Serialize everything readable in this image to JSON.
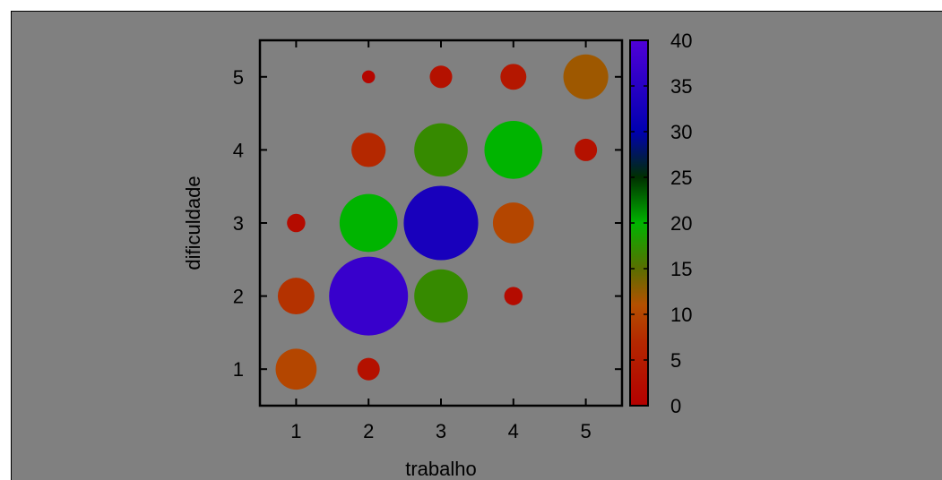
{
  "chart_data": {
    "type": "scatter",
    "subtype": "bubble",
    "title": "",
    "xlabel": "trabalho",
    "ylabel": "dificuldade",
    "xlim": [
      0.5,
      5.5
    ],
    "ylim": [
      0.5,
      5.5
    ],
    "xticks": [
      "1",
      "2",
      "3",
      "4",
      "5"
    ],
    "yticks": [
      "1",
      "2",
      "3",
      "4",
      "5"
    ],
    "grid": false,
    "colorbar": {
      "range": [
        0,
        40
      ],
      "ticks": [
        "0",
        "5",
        "10",
        "15",
        "20",
        "25",
        "30",
        "35",
        "40"
      ],
      "colormap": [
        {
          "v": 0,
          "color": "#b40000"
        },
        {
          "v": 7,
          "color": "#b42800"
        },
        {
          "v": 11,
          "color": "#b45000"
        },
        {
          "v": 15,
          "color": "#5a6e00"
        },
        {
          "v": 20,
          "color": "#00b400"
        },
        {
          "v": 25,
          "color": "#003000"
        },
        {
          "v": 30,
          "color": "#0000b0"
        },
        {
          "v": 40,
          "color": "#5000d8"
        }
      ]
    },
    "points": [
      {
        "x": 1,
        "y": 1,
        "value": 10
      },
      {
        "x": 1,
        "y": 2,
        "value": 8
      },
      {
        "x": 1,
        "y": 3,
        "value": 2
      },
      {
        "x": 2,
        "y": 1,
        "value": 3
      },
      {
        "x": 2,
        "y": 2,
        "value": 37
      },
      {
        "x": 2,
        "y": 3,
        "value": 20
      },
      {
        "x": 2,
        "y": 4,
        "value": 7
      },
      {
        "x": 2,
        "y": 5,
        "value": 1
      },
      {
        "x": 3,
        "y": 2,
        "value": 17
      },
      {
        "x": 3,
        "y": 3,
        "value": 33
      },
      {
        "x": 3,
        "y": 4,
        "value": 17
      },
      {
        "x": 3,
        "y": 5,
        "value": 3
      },
      {
        "x": 4,
        "y": 2,
        "value": 2
      },
      {
        "x": 4,
        "y": 3,
        "value": 10
      },
      {
        "x": 4,
        "y": 4,
        "value": 20
      },
      {
        "x": 4,
        "y": 5,
        "value": 4
      },
      {
        "x": 5,
        "y": 4,
        "value": 3
      },
      {
        "x": 5,
        "y": 5,
        "value": 12
      }
    ]
  }
}
